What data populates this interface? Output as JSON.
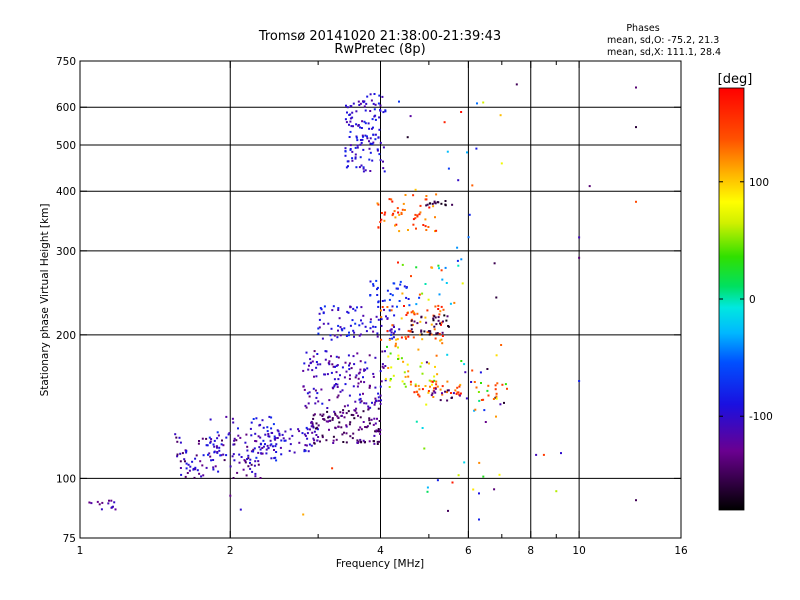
{
  "chart_data": {
    "type": "scatter",
    "title": "Tromsø 20141020 21:38:00-21:39:43",
    "subtitle": "RwPretec (8p)",
    "legend_title": "Phases",
    "stats": [
      "mean, sd,O: -75.2, 21.3",
      "mean, sd,X: 111.1, 28.4"
    ],
    "xlabel": "Frequency [MHz]",
    "ylabel": "Stationary phase Virtual Height [km]",
    "xscale": "log",
    "yscale": "log",
    "xlim": [
      1,
      16
    ],
    "ylim": [
      75,
      750
    ],
    "xticks": [
      1,
      2,
      4,
      6,
      8,
      10,
      16
    ],
    "xminor": [
      3,
      5,
      7,
      9
    ],
    "xgrid": [
      2,
      4,
      6,
      8,
      10
    ],
    "yticks": [
      75,
      100,
      200,
      300,
      400,
      500,
      600,
      750
    ],
    "ygrid": [
      100,
      200,
      300,
      400,
      500,
      600
    ],
    "grid": true,
    "colorbar": {
      "label": "[deg]",
      "min": -180,
      "max": 180,
      "ticks": [
        100,
        0,
        -100
      ],
      "colormap": "rainbow"
    },
    "clusters": [
      {
        "name": "c1",
        "f": [
          1.04,
          1.18
        ],
        "h": [
          86,
          91
        ],
        "n": 14,
        "ph": [
          -140,
          -95
        ]
      },
      {
        "name": "c2",
        "f": [
          1.55,
          2.3
        ],
        "h": [
          100,
          125
        ],
        "n": 110,
        "ph": [
          -150,
          -85
        ]
      },
      {
        "name": "c3",
        "f": [
          1.8,
          2.5
        ],
        "h": [
          108,
          135
        ],
        "n": 60,
        "ph": [
          -120,
          -70
        ]
      },
      {
        "name": "c4",
        "f": [
          2.3,
          3.0
        ],
        "h": [
          112,
          128
        ],
        "n": 70,
        "ph": [
          -125,
          -80
        ]
      },
      {
        "name": "c5",
        "f": [
          2.9,
          4.0
        ],
        "h": [
          118,
          140
        ],
        "n": 130,
        "ph": [
          -165,
          -110
        ]
      },
      {
        "name": "c6",
        "f": [
          2.8,
          4.1
        ],
        "h": [
          140,
          185
        ],
        "n": 150,
        "ph": [
          -140,
          -85
        ]
      },
      {
        "name": "c7",
        "f": [
          3.0,
          4.3
        ],
        "h": [
          195,
          230
        ],
        "n": 90,
        "ph": [
          -125,
          -70
        ]
      },
      {
        "name": "c8",
        "f": [
          3.8,
          4.6
        ],
        "h": [
          230,
          260
        ],
        "n": 30,
        "ph": [
          -100,
          -60
        ]
      },
      {
        "name": "c9",
        "f": [
          3.4,
          4.1
        ],
        "h": [
          440,
          640
        ],
        "n": 130,
        "ph": [
          -120,
          -75
        ]
      },
      {
        "name": "c10",
        "f": [
          3.9,
          5.2
        ],
        "h": [
          330,
          395
        ],
        "n": 55,
        "ph": [
          110,
          175
        ]
      },
      {
        "name": "c11",
        "f": [
          4.9,
          5.6
        ],
        "h": [
          372,
          382
        ],
        "n": 15,
        "ph": [
          -175,
          -150
        ]
      },
      {
        "name": "c12",
        "f": [
          4.0,
          5.4
        ],
        "h": [
          190,
          230
        ],
        "n": 60,
        "ph": [
          95,
          175
        ]
      },
      {
        "name": "c13",
        "f": [
          4.6,
          5.5
        ],
        "h": [
          200,
          220
        ],
        "n": 35,
        "ph": [
          -180,
          -140
        ]
      },
      {
        "name": "c14",
        "f": [
          4.1,
          5.2
        ],
        "h": [
          155,
          190
        ],
        "n": 40,
        "ph": [
          30,
          130
        ]
      },
      {
        "name": "c15",
        "f": [
          4.6,
          5.8
        ],
        "h": [
          148,
          160
        ],
        "n": 40,
        "ph": [
          100,
          170
        ]
      },
      {
        "name": "c16",
        "f": [
          5.0,
          5.8
        ],
        "h": [
          145,
          155
        ],
        "n": 15,
        "ph": [
          -160,
          -110
        ]
      },
      {
        "name": "c17",
        "f": [
          4.3,
          5.9
        ],
        "h": [
          225,
          290
        ],
        "n": 25,
        "ph": [
          -60,
          170
        ]
      },
      {
        "name": "c18",
        "f": [
          5.8,
          7.2
        ],
        "h": [
          130,
          190
        ],
        "n": 25,
        "ph": [
          -170,
          170
        ]
      },
      {
        "name": "c19",
        "f": [
          4.3,
          7.0
        ],
        "h": [
          80,
          640
        ],
        "n": 45,
        "ph": [
          -180,
          180
        ]
      },
      {
        "name": "c20",
        "f": [
          6.0,
          7.2
        ],
        "h": [
          145,
          160
        ],
        "n": 12,
        "ph": [
          120,
          160
        ]
      }
    ],
    "isolated_points": [
      {
        "f": 7.5,
        "h": 670,
        "ph": -150
      },
      {
        "f": 13,
        "h": 660,
        "ph": -140
      },
      {
        "f": 13,
        "h": 545,
        "ph": -160
      },
      {
        "f": 13,
        "h": 380,
        "ph": 140
      },
      {
        "f": 10.5,
        "h": 410,
        "ph": -140
      },
      {
        "f": 10,
        "h": 320,
        "ph": -110
      },
      {
        "f": 10,
        "h": 290,
        "ph": -140
      },
      {
        "f": 10,
        "h": 160,
        "ph": -80
      },
      {
        "f": 9.2,
        "h": 113,
        "ph": -100
      },
      {
        "f": 8.5,
        "h": 112,
        "ph": 150
      },
      {
        "f": 8.2,
        "h": 112,
        "ph": -110
      },
      {
        "f": 9.0,
        "h": 94,
        "ph": 60
      },
      {
        "f": 13,
        "h": 90,
        "ph": -150
      },
      {
        "f": 6.3,
        "h": 82,
        "ph": -80
      },
      {
        "f": 6.3,
        "h": 93,
        "ph": -90
      },
      {
        "f": 3.2,
        "h": 105,
        "ph": 150
      },
      {
        "f": 1.0,
        "h": 88,
        "ph": -95
      },
      {
        "f": 2.8,
        "h": 84,
        "ph": 110
      },
      {
        "f": 2.0,
        "h": 92,
        "ph": -130
      },
      {
        "f": 2.1,
        "h": 86,
        "ph": -100
      }
    ]
  }
}
